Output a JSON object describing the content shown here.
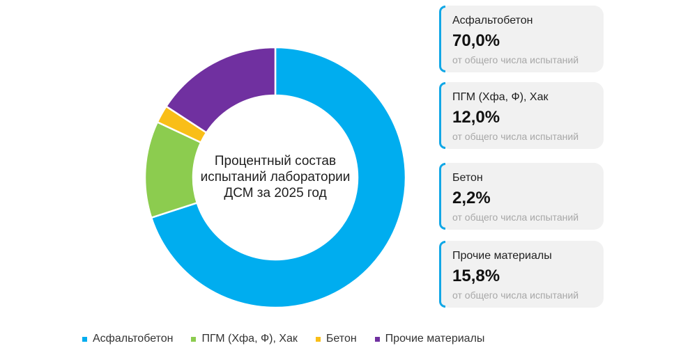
{
  "chart_data": {
    "type": "pie",
    "variant": "donut",
    "title": [
      "Процентный состав",
      "испытаний лаборатории",
      "ДСМ за 2025 год"
    ],
    "categories": [
      "Асфальтобетон",
      "ПГМ (Хфа, Ф), Хак",
      "Бетон",
      "Прочие материалы"
    ],
    "values": [
      70.0,
      12.0,
      2.2,
      15.8
    ],
    "value_labels": [
      "70,0%",
      "12,0%",
      "2,2%",
      "15,8%"
    ],
    "colors": [
      "#00adef",
      "#8ccc4f",
      "#f9be18",
      "#7030a0"
    ],
    "value_note": "от общего числа испытаний",
    "legend_position": "bottom",
    "start": "top, clockwise"
  },
  "accent_color": "#11a7e6",
  "icons": {
    "legend_marker": "square"
  }
}
